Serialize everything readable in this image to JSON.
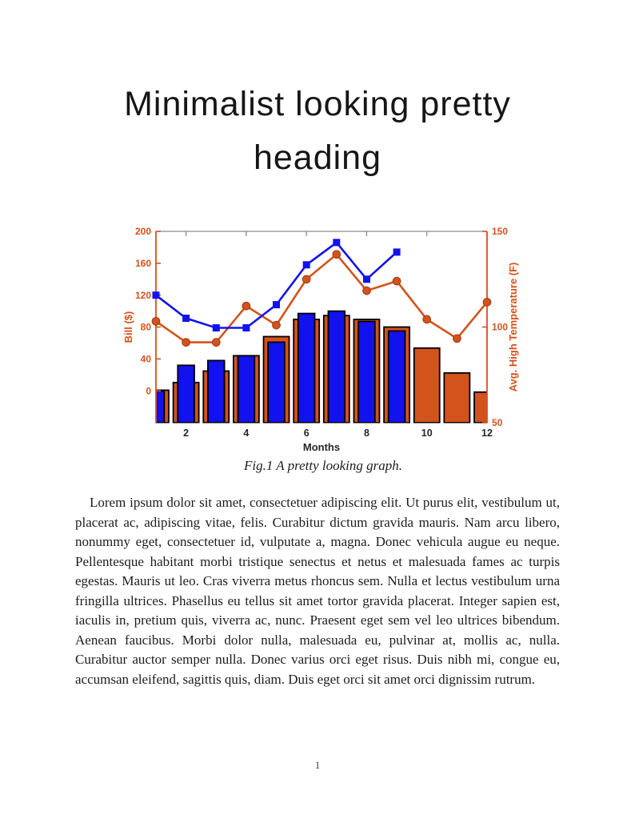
{
  "document": {
    "heading_line1": "Minimalist looking pretty",
    "heading_line2": "heading",
    "figure_caption": "Fig.1 A pretty looking graph.",
    "body_paragraph": "Lorem ipsum dolor sit amet, consectetuer adipiscing elit. Ut purus elit, vestibulum ut, placerat ac, adipiscing vitae, felis. Curabitur dictum gravida mauris. Nam arcu libero, nonummy eget, consectetuer id, vulputate a, magna. Donec vehicula augue eu neque. Pellentesque habitant morbi tristique senectus et netus et malesuada fames ac turpis egestas. Mauris ut leo. Cras viverra metus rhoncus sem. Nulla et lectus vestibulum urna fringilla ultrices. Phasellus eu tellus sit amet tortor gravida placerat. Integer sapien est, iaculis in, pretium quis, viverra ac, nunc. Praesent eget sem vel leo ultrices bibendum. Aenean faucibus. Morbi dolor nulla, malesuada eu, pulvinar at, mollis ac, nulla. Curabitur auctor semper nulla. Donec varius orci eget risus. Duis nibh mi, congue eu, accumsan eleifend, sagittis quis, diam. Duis eget orci sit amet orci dignissim rutrum.",
    "page_number": "1"
  },
  "chart_data": {
    "type": "bar",
    "subtype": "dual-axis bar and line combo, MATLAB style",
    "xlabel": "Months",
    "x": [
      1,
      2,
      3,
      4,
      5,
      6,
      7,
      8,
      9,
      10,
      11,
      12
    ],
    "x_ticks": [
      2,
      4,
      6,
      8,
      10,
      12
    ],
    "xlim": [
      1,
      12
    ],
    "grid": false,
    "legend": null,
    "left_axis": {
      "label": "Bill ($)",
      "ticks": [
        0,
        40,
        80,
        120,
        160,
        200
      ],
      "lim": [
        -40,
        200
      ]
    },
    "right_axis": {
      "label": "Avg. High Temperature (F)",
      "ticks": [
        50,
        100,
        150
      ],
      "lim": [
        50,
        150
      ]
    },
    "colors": {
      "blue": "#1212ee",
      "orange": "#d2531c",
      "orange_edge": "#a63c10",
      "bar_edge": "#000000",
      "axis_text": "#262626",
      "box": "#8a8a8a"
    },
    "series": [
      {
        "name": "temperature_bars",
        "kind": "bar",
        "axis": "right",
        "color": "orange",
        "bar_width_frac": 0.85,
        "values": [
          67,
          71,
          77,
          85,
          95,
          104,
          106,
          104,
          100,
          89,
          76,
          66
        ]
      },
      {
        "name": "bill_bars",
        "kind": "bar",
        "axis": "left",
        "color": "blue",
        "bar_width_frac": 0.55,
        "values": [
          0,
          32,
          38,
          44,
          61,
          97,
          100,
          87,
          75,
          null,
          null,
          null
        ]
      },
      {
        "name": "temperature_line",
        "kind": "line",
        "axis": "right",
        "color": "orange",
        "marker": "circle",
        "values": [
          103,
          92,
          92,
          111,
          101,
          125,
          138,
          119,
          124,
          104,
          94,
          113
        ]
      },
      {
        "name": "bill_line",
        "kind": "line",
        "axis": "left",
        "color": "blue",
        "marker": "square",
        "values": [
          120,
          91,
          79,
          79,
          108,
          158,
          186,
          140,
          174,
          null,
          null,
          null
        ]
      }
    ]
  }
}
